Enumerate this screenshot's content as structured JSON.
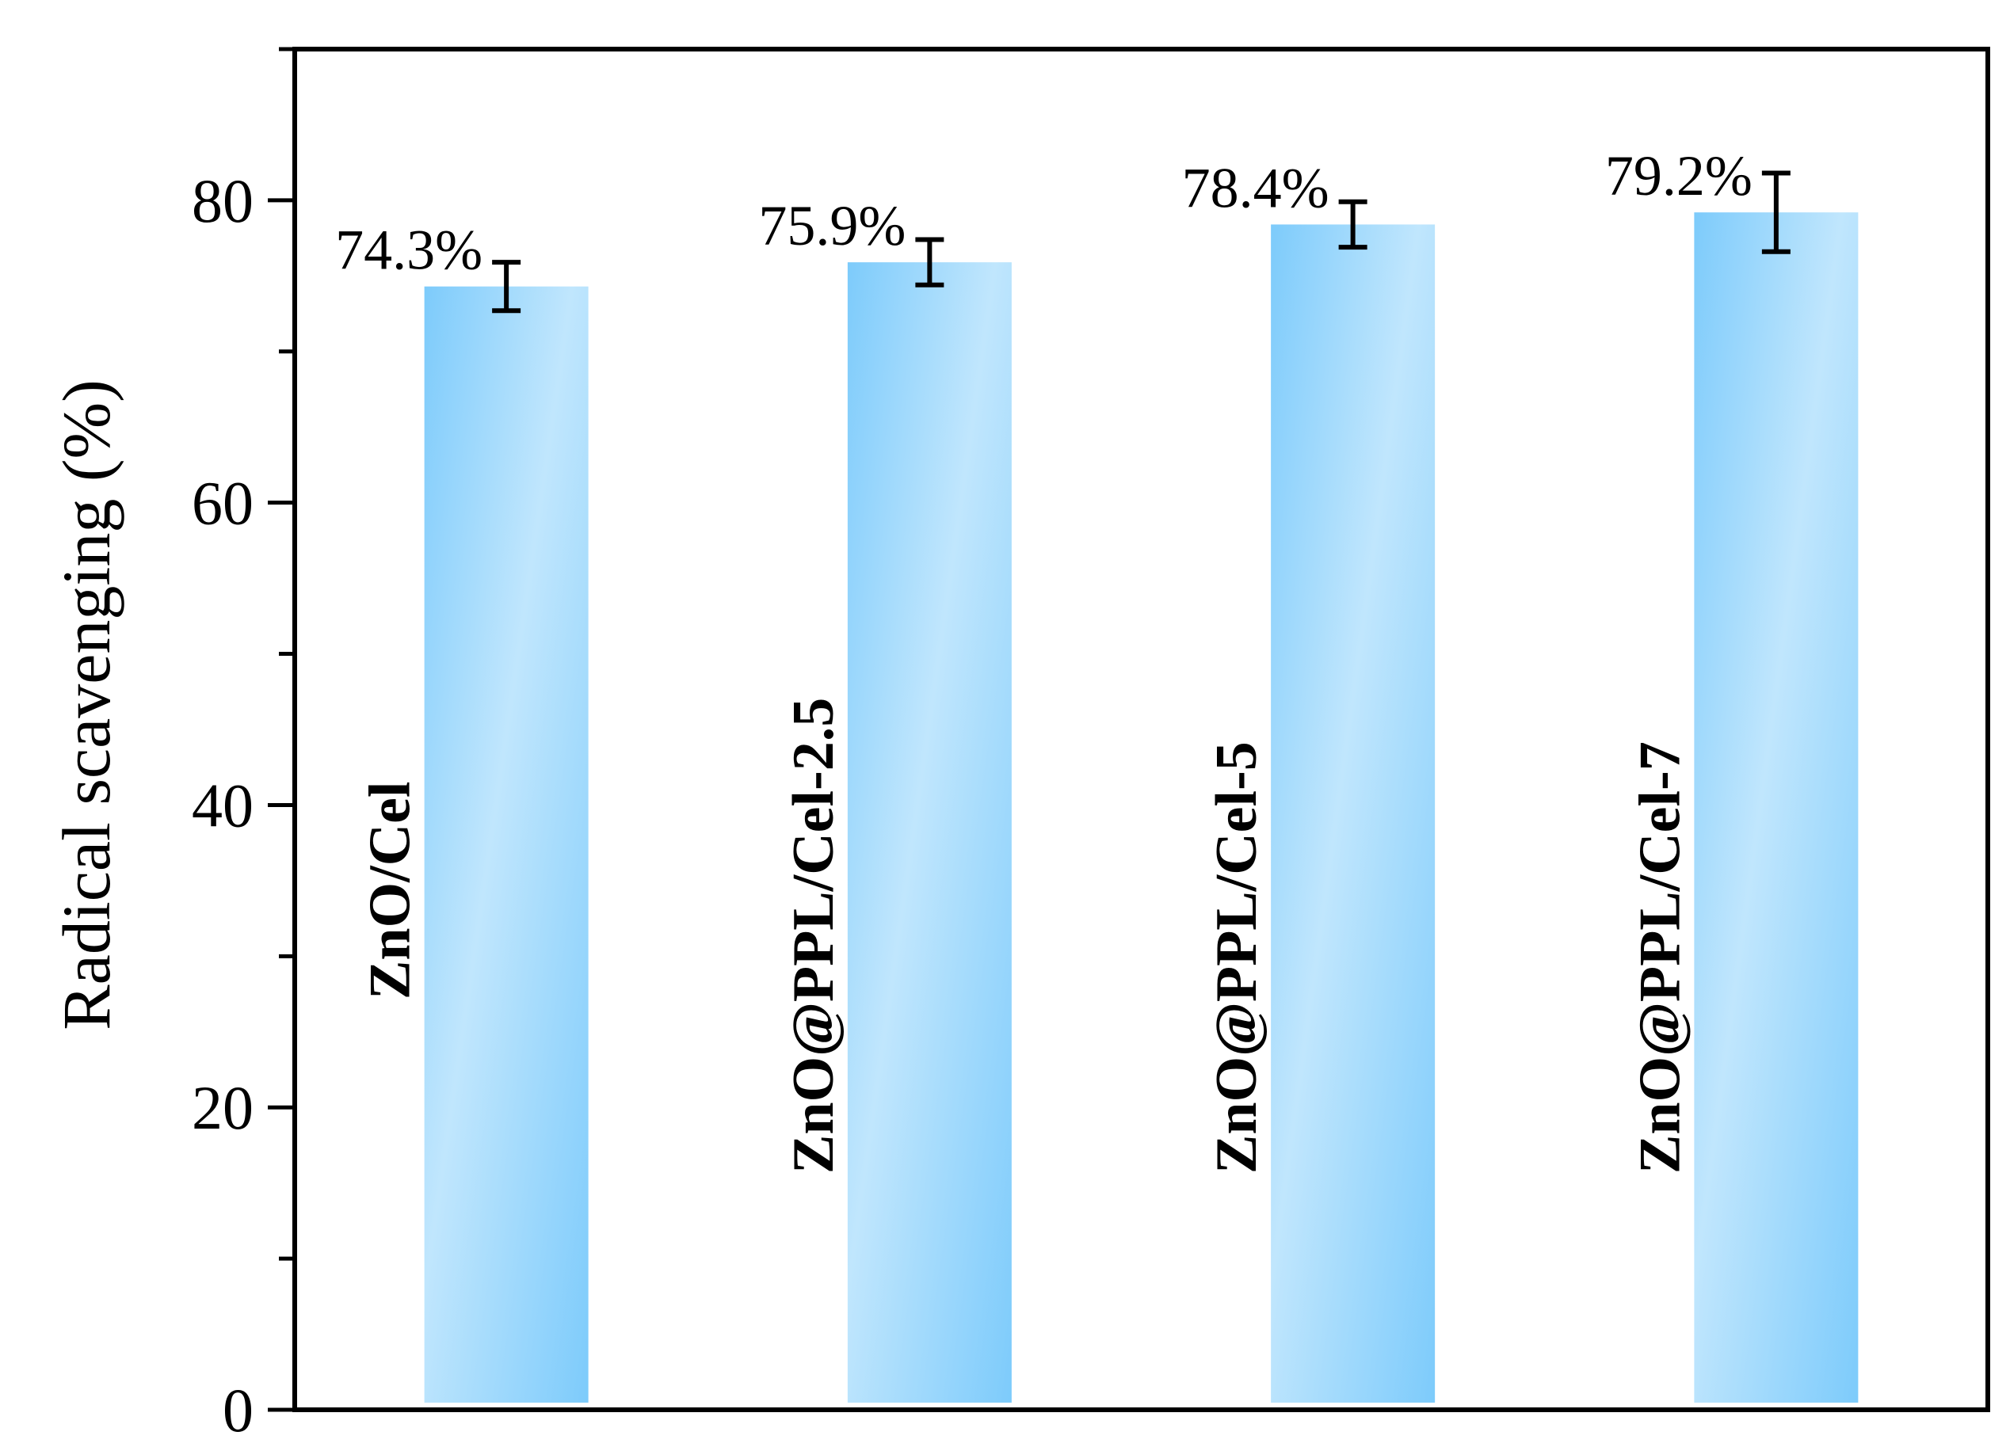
{
  "chart_data": {
    "type": "bar",
    "title": "",
    "xlabel": "",
    "ylabel": "Radical scavenging (%)",
    "ylim": [
      0,
      90
    ],
    "yticks": [
      0,
      20,
      40,
      60,
      80
    ],
    "categories": [
      "ZnO/Cel",
      "ZnO@PPL/Cel-2.5",
      "ZnO@PPL/Cel-5",
      "ZnO@PPL/Cel-7"
    ],
    "values": [
      74.3,
      75.9,
      78.4,
      79.2
    ],
    "errors": [
      1.6,
      1.5,
      1.5,
      2.6
    ],
    "value_labels": [
      "74.3%",
      "75.9%",
      "78.4%",
      "79.2%"
    ],
    "category_label_placement": "inside bars, rotated vertical",
    "grid": false,
    "legend": "none",
    "colors": {
      "bar_dark": "#7dcbfb",
      "bar_light": "#bfe5fd",
      "axis": "#000000"
    }
  }
}
